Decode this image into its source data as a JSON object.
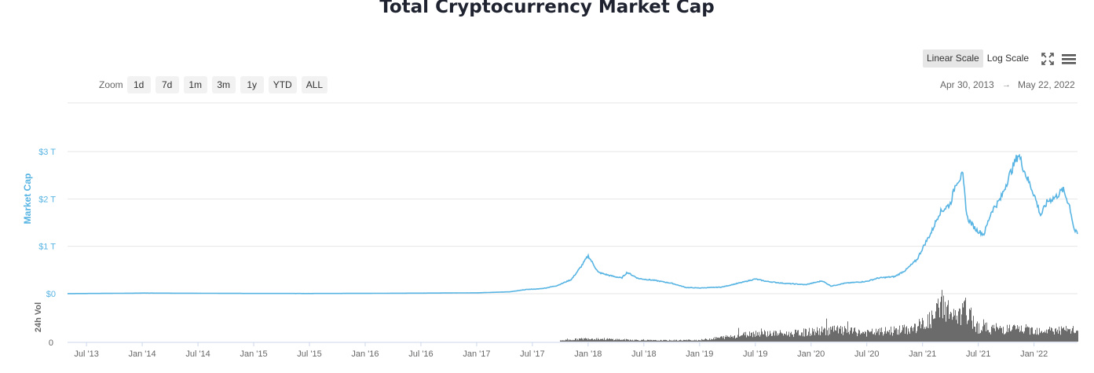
{
  "page": {
    "title": "Total Cryptocurrency Market Cap"
  },
  "controls": {
    "zoom_label": "Zoom",
    "zoom_buttons": [
      "1d",
      "7d",
      "1m",
      "3m",
      "1y",
      "YTD",
      "ALL"
    ],
    "linear_scale": "Linear Scale",
    "log_scale": "Log Scale",
    "range_from": "Apr 30, 2013",
    "range_arrow": "→",
    "range_to": "May 22, 2022"
  },
  "chart_data": {
    "type": "line",
    "title": "Total Cryptocurrency Market Cap",
    "ylabel": "Market Cap",
    "ylabel_secondary": "24h Vol",
    "colors": {
      "line": "#57b4e3",
      "volume": "#6b6b6b",
      "axis_label": "#57b4e3"
    },
    "ylim": [
      0,
      3
    ],
    "y_unit": "T (USD)",
    "yticks": [
      "$0",
      "$1 T",
      "$2 T",
      "$3 T"
    ],
    "vol_ticks": [
      "0"
    ],
    "xlim": [
      2013.33,
      2022.39
    ],
    "xticks": [
      {
        "x": 2013.5,
        "label": "Jul '13"
      },
      {
        "x": 2014.0,
        "label": "Jan '14"
      },
      {
        "x": 2014.5,
        "label": "Jul '14"
      },
      {
        "x": 2015.0,
        "label": "Jan '15"
      },
      {
        "x": 2015.5,
        "label": "Jul '15"
      },
      {
        "x": 2016.0,
        "label": "Jan '16"
      },
      {
        "x": 2016.5,
        "label": "Jul '16"
      },
      {
        "x": 2017.0,
        "label": "Jan '17"
      },
      {
        "x": 2017.5,
        "label": "Jul '17"
      },
      {
        "x": 2018.0,
        "label": "Jan '18"
      },
      {
        "x": 2018.5,
        "label": "Jul '18"
      },
      {
        "x": 2019.0,
        "label": "Jan '19"
      },
      {
        "x": 2019.5,
        "label": "Jul '19"
      },
      {
        "x": 2020.0,
        "label": "Jan '20"
      },
      {
        "x": 2020.5,
        "label": "Jul '20"
      },
      {
        "x": 2021.0,
        "label": "Jan '21"
      },
      {
        "x": 2021.5,
        "label": "Jul '21"
      },
      {
        "x": 2022.0,
        "label": "Jan '22"
      }
    ],
    "series": [
      {
        "name": "Market Cap",
        "points": [
          [
            2013.33,
            0.0015
          ],
          [
            2013.9,
            0.01
          ],
          [
            2014.0,
            0.013
          ],
          [
            2014.5,
            0.009
          ],
          [
            2015.0,
            0.005
          ],
          [
            2015.5,
            0.004
          ],
          [
            2016.0,
            0.007
          ],
          [
            2016.5,
            0.012
          ],
          [
            2017.0,
            0.018
          ],
          [
            2017.3,
            0.04
          ],
          [
            2017.45,
            0.09
          ],
          [
            2017.55,
            0.1
          ],
          [
            2017.62,
            0.12
          ],
          [
            2017.72,
            0.17
          ],
          [
            2017.85,
            0.3
          ],
          [
            2017.93,
            0.55
          ],
          [
            2018.0,
            0.8
          ],
          [
            2018.04,
            0.65
          ],
          [
            2018.09,
            0.45
          ],
          [
            2018.2,
            0.38
          ],
          [
            2018.3,
            0.33
          ],
          [
            2018.35,
            0.45
          ],
          [
            2018.45,
            0.32
          ],
          [
            2018.6,
            0.28
          ],
          [
            2018.75,
            0.22
          ],
          [
            2018.88,
            0.13
          ],
          [
            2019.0,
            0.12
          ],
          [
            2019.2,
            0.14
          ],
          [
            2019.4,
            0.25
          ],
          [
            2019.5,
            0.31
          ],
          [
            2019.6,
            0.26
          ],
          [
            2019.75,
            0.22
          ],
          [
            2019.95,
            0.19
          ],
          [
            2020.1,
            0.27
          ],
          [
            2020.18,
            0.16
          ],
          [
            2020.3,
            0.22
          ],
          [
            2020.5,
            0.26
          ],
          [
            2020.6,
            0.33
          ],
          [
            2020.75,
            0.36
          ],
          [
            2020.85,
            0.5
          ],
          [
            2020.95,
            0.72
          ],
          [
            2021.02,
            1.05
          ],
          [
            2021.08,
            1.3
          ],
          [
            2021.15,
            1.7
          ],
          [
            2021.25,
            1.9
          ],
          [
            2021.3,
            2.35
          ],
          [
            2021.36,
            2.5
          ],
          [
            2021.4,
            1.6
          ],
          [
            2021.48,
            1.35
          ],
          [
            2021.55,
            1.25
          ],
          [
            2021.62,
            1.75
          ],
          [
            2021.7,
            2.0
          ],
          [
            2021.78,
            2.5
          ],
          [
            2021.86,
            2.95
          ],
          [
            2021.92,
            2.55
          ],
          [
            2022.0,
            2.1
          ],
          [
            2022.06,
            1.65
          ],
          [
            2022.12,
            1.95
          ],
          [
            2022.2,
            2.05
          ],
          [
            2022.26,
            2.2
          ],
          [
            2022.32,
            1.85
          ],
          [
            2022.36,
            1.35
          ],
          [
            2022.39,
            1.26
          ]
        ]
      },
      {
        "name": "24h Vol",
        "note": "relative daily volume, 0-1 scale",
        "points": [
          [
            2017.75,
            0.03
          ],
          [
            2018.0,
            0.08
          ],
          [
            2018.3,
            0.05
          ],
          [
            2018.6,
            0.03
          ],
          [
            2019.0,
            0.04
          ],
          [
            2019.3,
            0.14
          ],
          [
            2019.5,
            0.22
          ],
          [
            2019.8,
            0.2
          ],
          [
            2020.2,
            0.3
          ],
          [
            2020.5,
            0.22
          ],
          [
            2020.9,
            0.32
          ],
          [
            2021.0,
            0.45
          ],
          [
            2021.1,
            0.6
          ],
          [
            2021.17,
            1.0
          ],
          [
            2021.3,
            0.55
          ],
          [
            2021.38,
            0.8
          ],
          [
            2021.5,
            0.35
          ],
          [
            2021.8,
            0.32
          ],
          [
            2022.0,
            0.3
          ],
          [
            2022.35,
            0.28
          ]
        ]
      }
    ]
  }
}
